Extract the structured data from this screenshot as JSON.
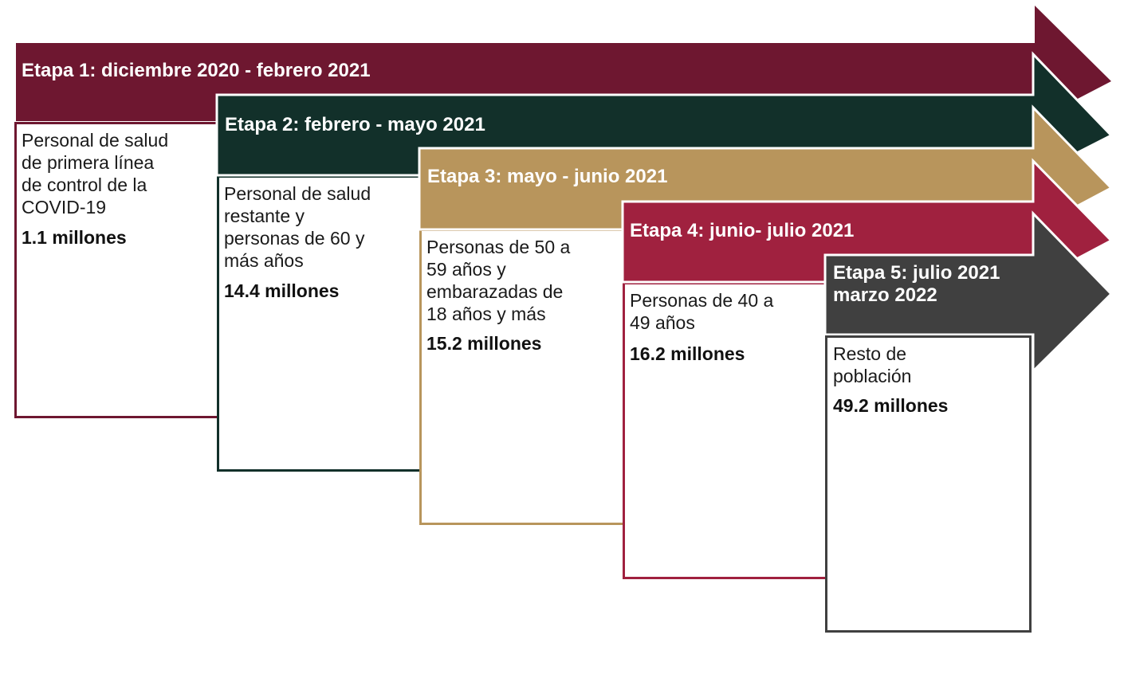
{
  "stages": [
    {
      "title": "Etapa 1: diciembre 2020 - febrero 2021",
      "title_line2": "",
      "description": [
        "Personal de salud",
        "de primera línea",
        "de control de la",
        "COVID-19"
      ],
      "count": "1.1 millones",
      "color": "#6e1730"
    },
    {
      "title": "Etapa 2: febrero - mayo 2021",
      "title_line2": "",
      "description": [
        "Personal de salud",
        "restante y",
        "personas de 60 y",
        "más años"
      ],
      "count": "14.4 millones",
      "color": "#12302a"
    },
    {
      "title": "Etapa 3: mayo - junio 2021",
      "title_line2": "",
      "description": [
        "Personas de 50 a",
        "59 años y",
        "embarazadas de",
        "18 años y más"
      ],
      "count": "15.2 millones",
      "color": "#b8955c"
    },
    {
      "title": "Etapa 4: junio- julio 2021",
      "title_line2": "",
      "description": [
        "Personas de 40 a",
        "49 años"
      ],
      "count": "16.2 millones",
      "color": "#a0213f"
    },
    {
      "title": "Etapa 5: julio 2021",
      "title_line2": "marzo 2022",
      "description": [
        "Resto de",
        "población"
      ],
      "count": "49.2 millones",
      "color": "#404040"
    }
  ]
}
